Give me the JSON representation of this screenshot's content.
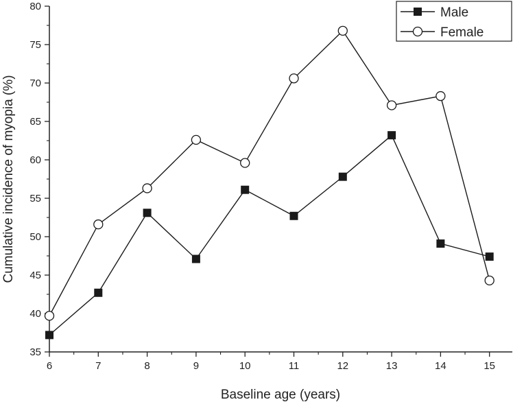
{
  "chart_data": {
    "type": "line",
    "title": "",
    "xlabel": "Baseline age (years)",
    "ylabel": "Cumulative incidence of myopia (%)",
    "x": [
      6,
      7,
      8,
      9,
      10,
      11,
      12,
      13,
      14,
      15
    ],
    "xlim": [
      6,
      15.5
    ],
    "ylim": [
      35,
      80
    ],
    "xticks": [
      "6",
      "7",
      "8",
      "9",
      "10",
      "11",
      "12",
      "13",
      "14",
      "15"
    ],
    "yticks": [
      "35",
      "40",
      "45",
      "50",
      "55",
      "60",
      "65",
      "70",
      "75",
      "80"
    ],
    "legend_position": "top-right",
    "grid": false,
    "series": [
      {
        "name": "Male",
        "marker": "filled-square",
        "color": "#1a1a1a",
        "values": [
          37.2,
          42.7,
          53.1,
          47.1,
          56.1,
          52.7,
          57.8,
          63.2,
          49.1,
          47.4
        ]
      },
      {
        "name": "Female",
        "marker": "open-circle",
        "color": "#1a1a1a",
        "values": [
          39.7,
          51.6,
          56.3,
          62.6,
          59.6,
          70.6,
          76.8,
          67.1,
          68.3,
          44.3
        ]
      }
    ]
  }
}
